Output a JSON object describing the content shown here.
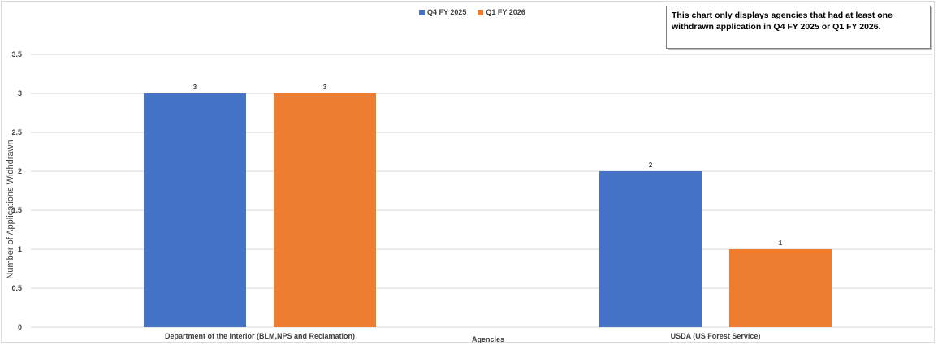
{
  "chart_data": {
    "type": "bar",
    "categories": [
      "Department of the Interior (BLM,NPS and Reclamation)",
      "USDA (US Forest Service)"
    ],
    "series": [
      {
        "name": "Q4 FY 2025",
        "values": [
          3,
          2
        ],
        "color": "#4472c4"
      },
      {
        "name": "Q1 FY 2026",
        "values": [
          3,
          1
        ],
        "color": "#ed7d31"
      }
    ],
    "xlabel": "Agencies",
    "ylabel": "Number of Applications Widhdrawn",
    "ylim": [
      0,
      3.5
    ],
    "yticks": [
      "0",
      "0.5",
      "1",
      "1.5",
      "2",
      "2.5",
      "3",
      "3.5"
    ],
    "grid": true,
    "legend_position": "top",
    "data_labels": true
  },
  "note": {
    "text": "This chart only displays agencies that had at least one withdrawn application in Q4 FY 2025 or Q1 FY 2026."
  }
}
